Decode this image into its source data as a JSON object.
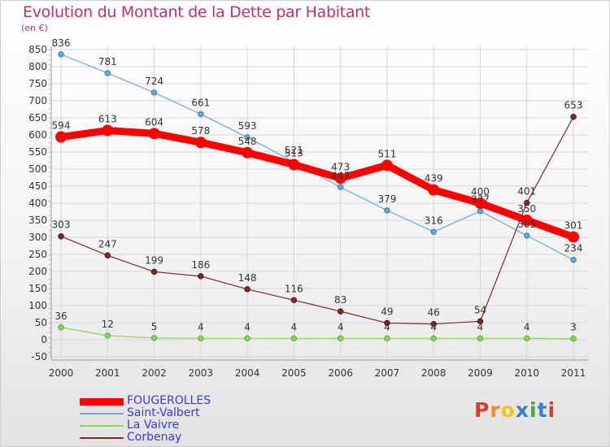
{
  "title": "Evolution du Montant de la Dette par Habitant",
  "unit_label": "(en €)",
  "logo": {
    "text": "Proxiti",
    "letters": [
      {
        "ch": "P",
        "color": "#e23a2e"
      },
      {
        "ch": "r",
        "color": "#f08a22"
      },
      {
        "ch": "o",
        "color": "#f4c21b"
      },
      {
        "ch": "x",
        "color": "#3c7fd1"
      },
      {
        "ch": "i",
        "color": "#49a83f"
      },
      {
        "ch": "t",
        "color": "#3c7fd1"
      },
      {
        "ch": "i",
        "color": "#e23a2e"
      }
    ]
  },
  "chart_data": {
    "type": "line",
    "categories": [
      "2000",
      "2001",
      "2002",
      "2003",
      "2004",
      "2005",
      "2006",
      "2007",
      "2008",
      "2009",
      "2010",
      "2011"
    ],
    "ylim": [
      -50,
      850
    ],
    "yticks": [
      -50,
      0,
      50,
      100,
      150,
      200,
      250,
      300,
      350,
      400,
      450,
      500,
      550,
      600,
      650,
      700,
      750,
      800,
      850
    ],
    "grid": true,
    "legend_position": "bottom-left",
    "series": [
      {
        "name": "FOUGEROLLES",
        "color": "#ff0000",
        "values": [
          594,
          613,
          604,
          578,
          548,
          513,
          473,
          511,
          439,
          400,
          350,
          301
        ]
      },
      {
        "name": "Saint-Valbert",
        "color": "#6fa6d6",
        "values": [
          836,
          781,
          724,
          661,
          593,
          521,
          447,
          379,
          316,
          377,
          305,
          234
        ]
      },
      {
        "name": "La Vaivre",
        "color": "#8ed35a",
        "values": [
          36,
          12,
          5,
          4,
          4,
          4,
          4,
          4,
          4,
          4,
          4,
          3
        ]
      },
      {
        "name": "Corbenay",
        "color": "#7a2a2a",
        "values": [
          303,
          247,
          199,
          186,
          148,
          116,
          83,
          49,
          46,
          54,
          401,
          653
        ]
      }
    ]
  }
}
